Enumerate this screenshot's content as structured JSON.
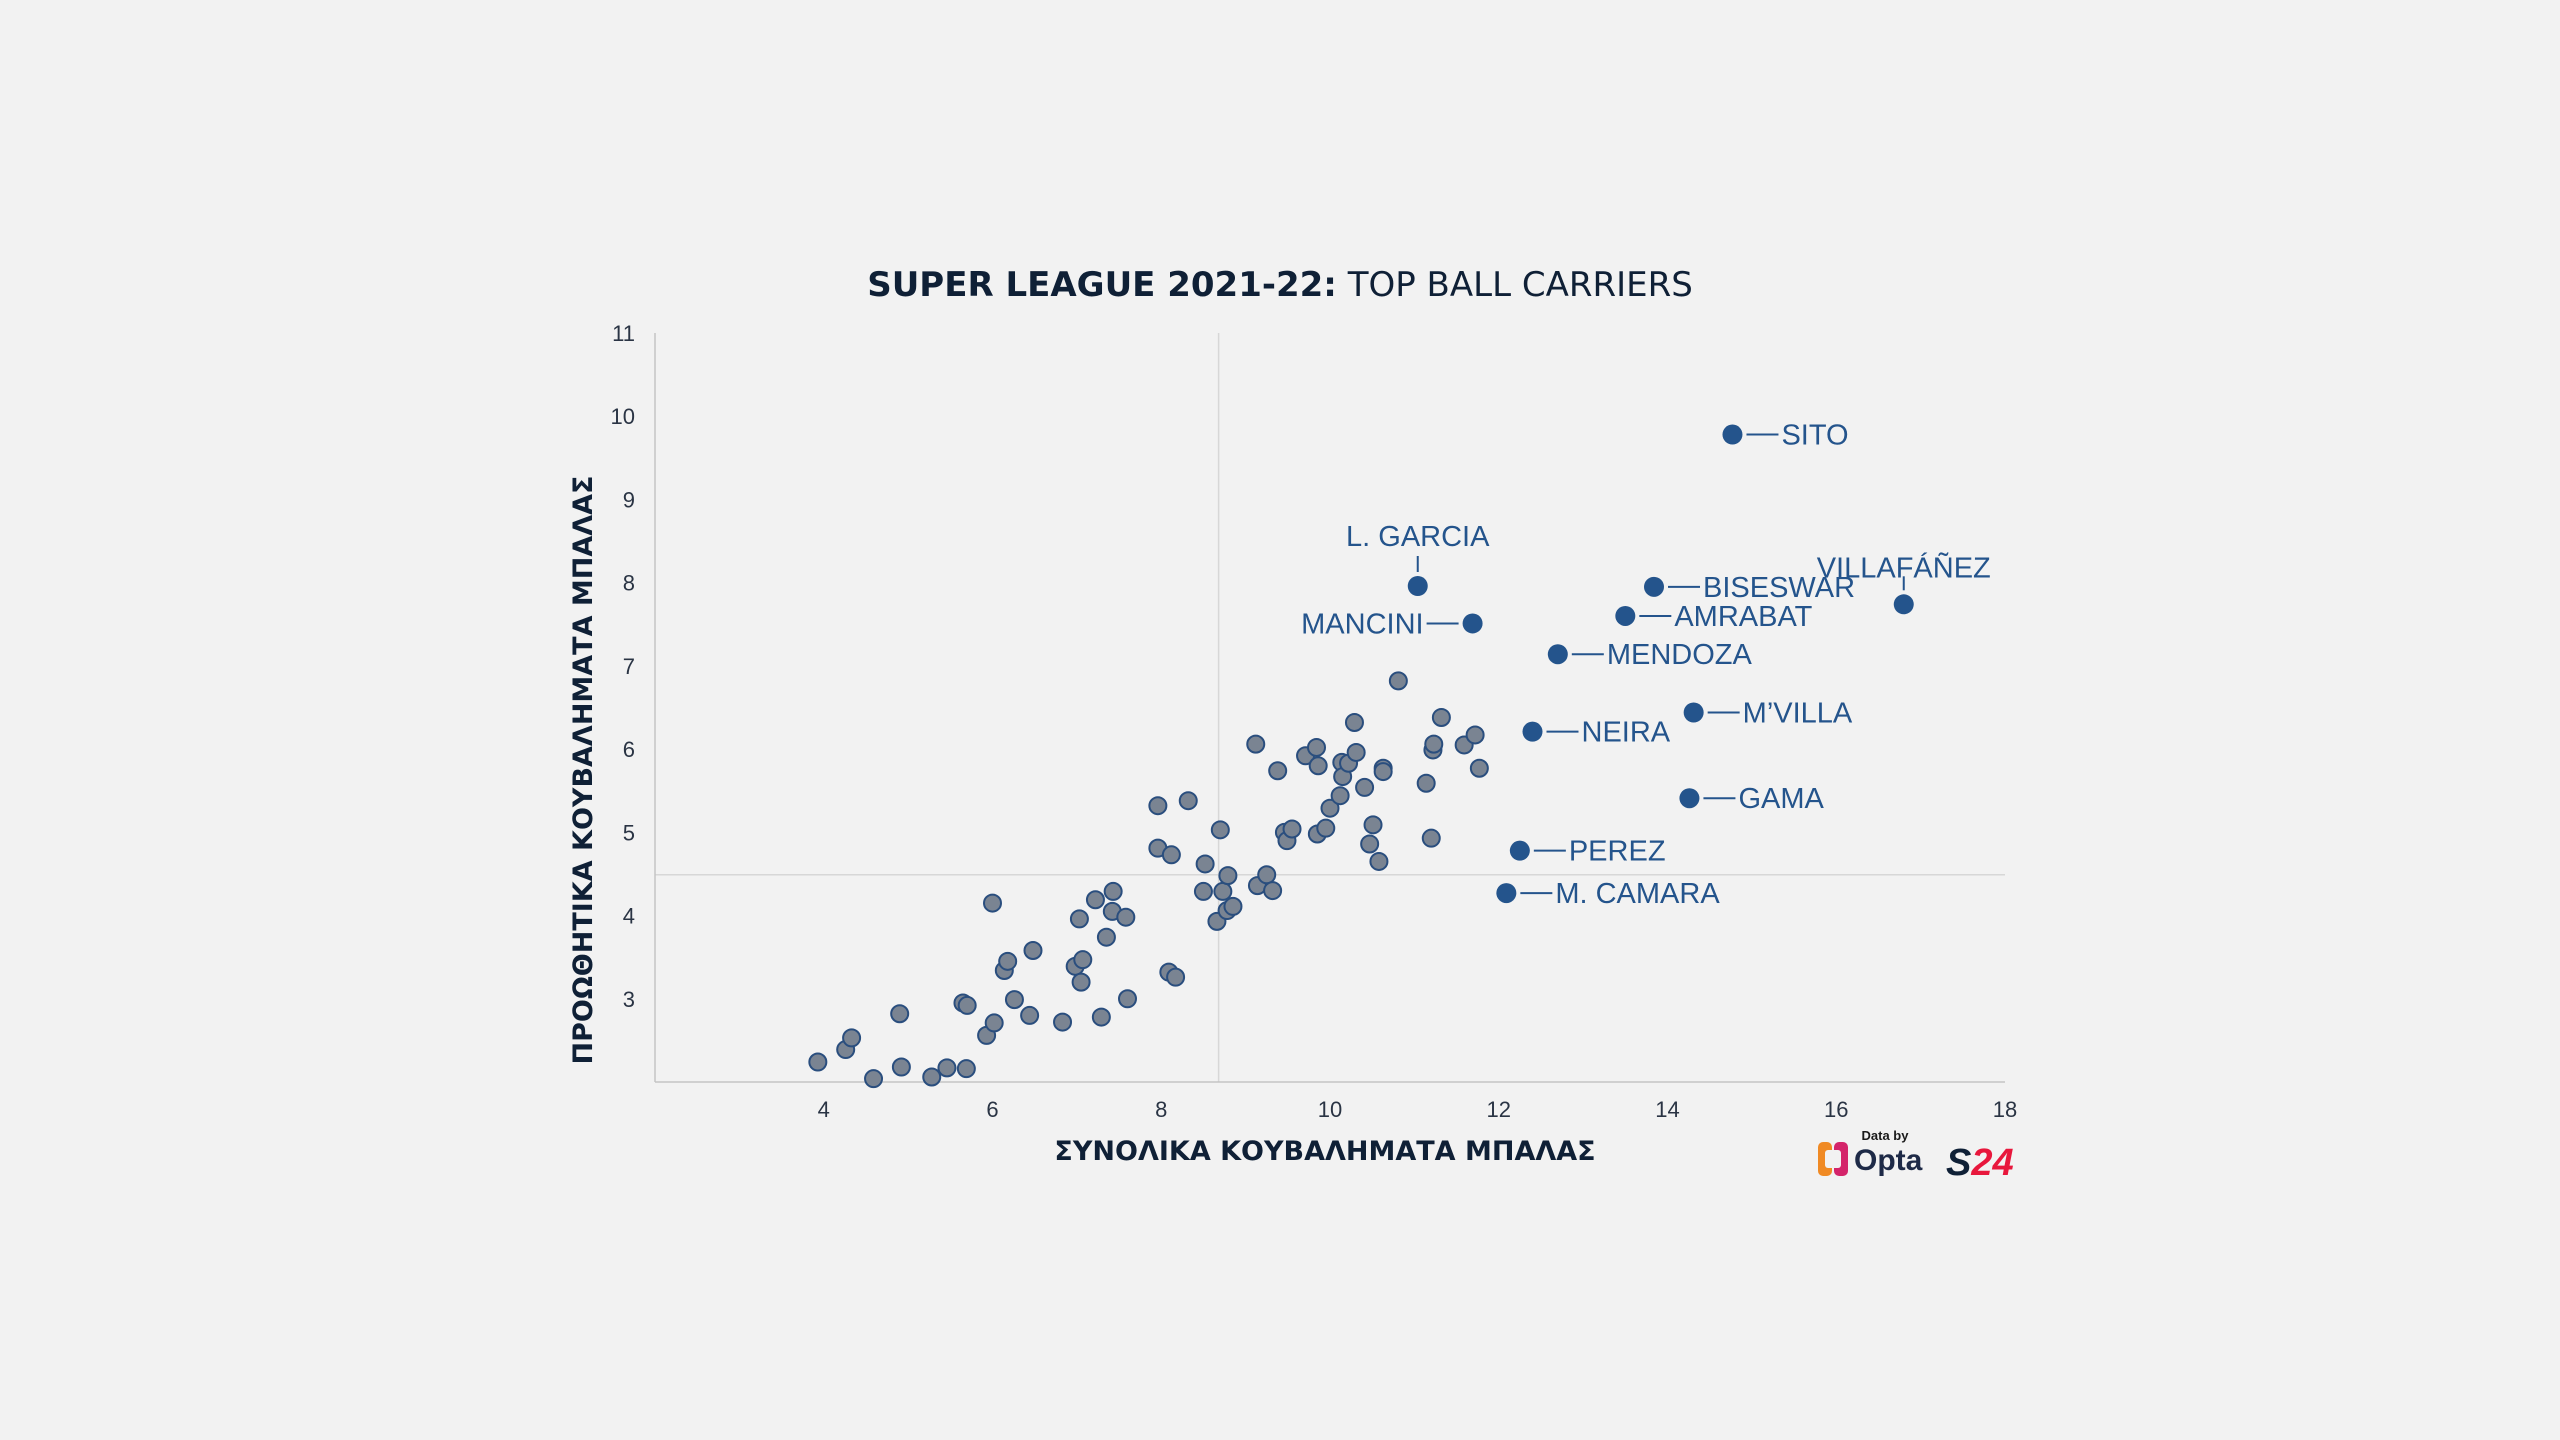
{
  "title": {
    "bold": "SUPER LEAGUE 2021-22:",
    "rest": " TOP BALL CARRIERS"
  },
  "colors": {
    "background": "#f2f2f2",
    "dot_fill": "#7a8492",
    "dot_stroke": "#2a4e7e",
    "highlight": "#24548c",
    "opta_orange": "#f08a24",
    "opta_pink": "#d4246a",
    "s24_red": "#e8173c",
    "s24_dark": "#0f2036"
  },
  "logos": {
    "data_by": "Data by",
    "opta": "Opta",
    "s24_s": "S",
    "s24_num": "24"
  },
  "chart_data": {
    "type": "scatter",
    "xlabel": "ΣΥΝΟΛΙΚΑ ΚΟΥΒΑΛΗΜΑΤΑ ΜΠΑΛΑΣ",
    "ylabel": "ΠΡΟΩΘΗΤΙΚΑ ΚΟΥΒΑΛΗΜΑΤΑ ΜΠΑΛΑΣ",
    "xlim": [
      2,
      18
    ],
    "ylim": [
      2,
      11
    ],
    "x_ticks": [
      "4",
      "6",
      "8",
      "10",
      "12",
      "14",
      "16",
      "18"
    ],
    "y_ticks": [
      "3",
      "4",
      "5",
      "6",
      "7",
      "8",
      "9",
      "10",
      "11"
    ],
    "reference_lines": {
      "x": 8.68,
      "y": 4.49
    },
    "grid": false,
    "highlighted": [
      {
        "name": "SITO",
        "x": 14.77,
        "y": 9.78
      },
      {
        "name": "L. GARCIA",
        "x": 11.04,
        "y": 7.96
      },
      {
        "name": "MANCINI",
        "x": 11.69,
        "y": 7.51
      },
      {
        "name": "VILLAFÁÑEZ",
        "x": 16.8,
        "y": 7.74
      },
      {
        "name": "BISESWAR",
        "x": 13.84,
        "y": 7.95
      },
      {
        "name": "AMRABAT",
        "x": 13.5,
        "y": 7.6
      },
      {
        "name": "MENDOZA",
        "x": 12.7,
        "y": 7.14
      },
      {
        "name": "M’VILLA",
        "x": 14.31,
        "y": 6.44
      },
      {
        "name": "NEIRA",
        "x": 12.4,
        "y": 6.21
      },
      {
        "name": "GAMA",
        "x": 14.26,
        "y": 5.41
      },
      {
        "name": "PEREZ",
        "x": 12.25,
        "y": 4.78
      },
      {
        "name": "M. CAMARA",
        "x": 12.09,
        "y": 4.27
      }
    ],
    "points": [
      [
        3.93,
        2.24
      ],
      [
        4.26,
        2.39
      ],
      [
        4.33,
        2.53
      ],
      [
        4.59,
        2.04
      ],
      [
        4.9,
        2.82
      ],
      [
        4.92,
        2.18
      ],
      [
        5.28,
        2.06
      ],
      [
        5.46,
        2.17
      ],
      [
        5.69,
        2.16
      ],
      [
        5.65,
        2.95
      ],
      [
        5.7,
        2.92
      ],
      [
        5.93,
        2.56
      ],
      [
        6.0,
        4.15
      ],
      [
        6.02,
        2.71
      ],
      [
        6.14,
        3.34
      ],
      [
        6.18,
        3.45
      ],
      [
        6.26,
        2.99
      ],
      [
        6.44,
        2.8
      ],
      [
        6.48,
        3.58
      ],
      [
        6.83,
        2.72
      ],
      [
        6.98,
        3.39
      ],
      [
        7.03,
        3.96
      ],
      [
        7.05,
        3.2
      ],
      [
        7.07,
        3.47
      ],
      [
        7.22,
        4.19
      ],
      [
        7.29,
        2.78
      ],
      [
        7.35,
        3.74
      ],
      [
        7.42,
        4.05
      ],
      [
        7.43,
        4.29
      ],
      [
        7.58,
        3.98
      ],
      [
        7.6,
        3.0
      ],
      [
        7.96,
        5.32
      ],
      [
        7.96,
        4.81
      ],
      [
        8.09,
        3.32
      ],
      [
        8.12,
        4.73
      ],
      [
        8.17,
        3.26
      ],
      [
        8.32,
        5.38
      ],
      [
        8.5,
        4.29
      ],
      [
        8.52,
        4.62
      ],
      [
        8.66,
        3.93
      ],
      [
        8.7,
        5.03
      ],
      [
        8.73,
        4.29
      ],
      [
        8.79,
        4.48
      ],
      [
        8.78,
        4.06
      ],
      [
        8.85,
        4.11
      ],
      [
        9.12,
        6.06
      ],
      [
        9.14,
        4.36
      ],
      [
        9.25,
        4.49
      ],
      [
        9.32,
        4.3
      ],
      [
        9.38,
        5.74
      ],
      [
        9.46,
        5.0
      ],
      [
        9.49,
        4.9
      ],
      [
        9.55,
        5.04
      ],
      [
        9.71,
        5.92
      ],
      [
        9.84,
        6.02
      ],
      [
        9.85,
        4.98
      ],
      [
        9.86,
        5.8
      ],
      [
        9.95,
        5.05
      ],
      [
        10.0,
        5.29
      ],
      [
        10.12,
        5.44
      ],
      [
        10.14,
        5.84
      ],
      [
        10.15,
        5.67
      ],
      [
        10.22,
        5.83
      ],
      [
        10.29,
        6.32
      ],
      [
        10.31,
        5.96
      ],
      [
        10.41,
        5.54
      ],
      [
        10.47,
        4.86
      ],
      [
        10.51,
        5.09
      ],
      [
        10.58,
        4.65
      ],
      [
        10.63,
        5.77
      ],
      [
        10.63,
        5.73
      ],
      [
        10.81,
        6.82
      ],
      [
        11.14,
        5.59
      ],
      [
        11.2,
        4.93
      ],
      [
        11.22,
        5.99
      ],
      [
        11.23,
        6.06
      ],
      [
        11.32,
        6.38
      ],
      [
        11.59,
        6.05
      ],
      [
        11.72,
        6.17
      ],
      [
        11.77,
        5.77
      ]
    ]
  }
}
